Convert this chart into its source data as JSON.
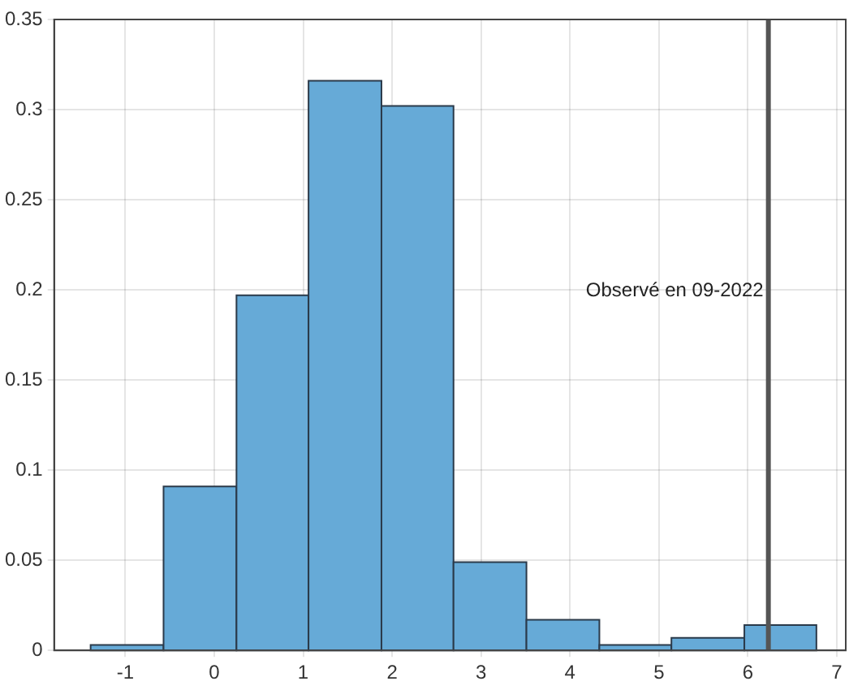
{
  "chart_data": {
    "type": "histogram",
    "bins": [
      -1.39,
      -0.57,
      0.25,
      1.06,
      1.88,
      2.69,
      3.51,
      4.33,
      5.14,
      5.96,
      6.77
    ],
    "values": [
      0.003,
      0.091,
      0.197,
      0.316,
      0.302,
      0.049,
      0.017,
      0.003,
      0.007,
      0.014
    ],
    "color": "#66aad7",
    "xlim": [
      -1.8,
      7.1
    ],
    "xticks": [
      -1,
      0,
      1,
      2,
      3,
      4,
      5,
      6,
      7
    ],
    "ylim": [
      0,
      0.35
    ],
    "yticks": [
      0,
      0.05,
      0.1,
      0.15,
      0.2,
      0.25,
      0.3,
      0.35
    ],
    "grid": true,
    "ref_lines": [
      {
        "axis": "x",
        "value": 6.23,
        "color": "#555555",
        "label": "Observé en 09-2022"
      }
    ]
  }
}
